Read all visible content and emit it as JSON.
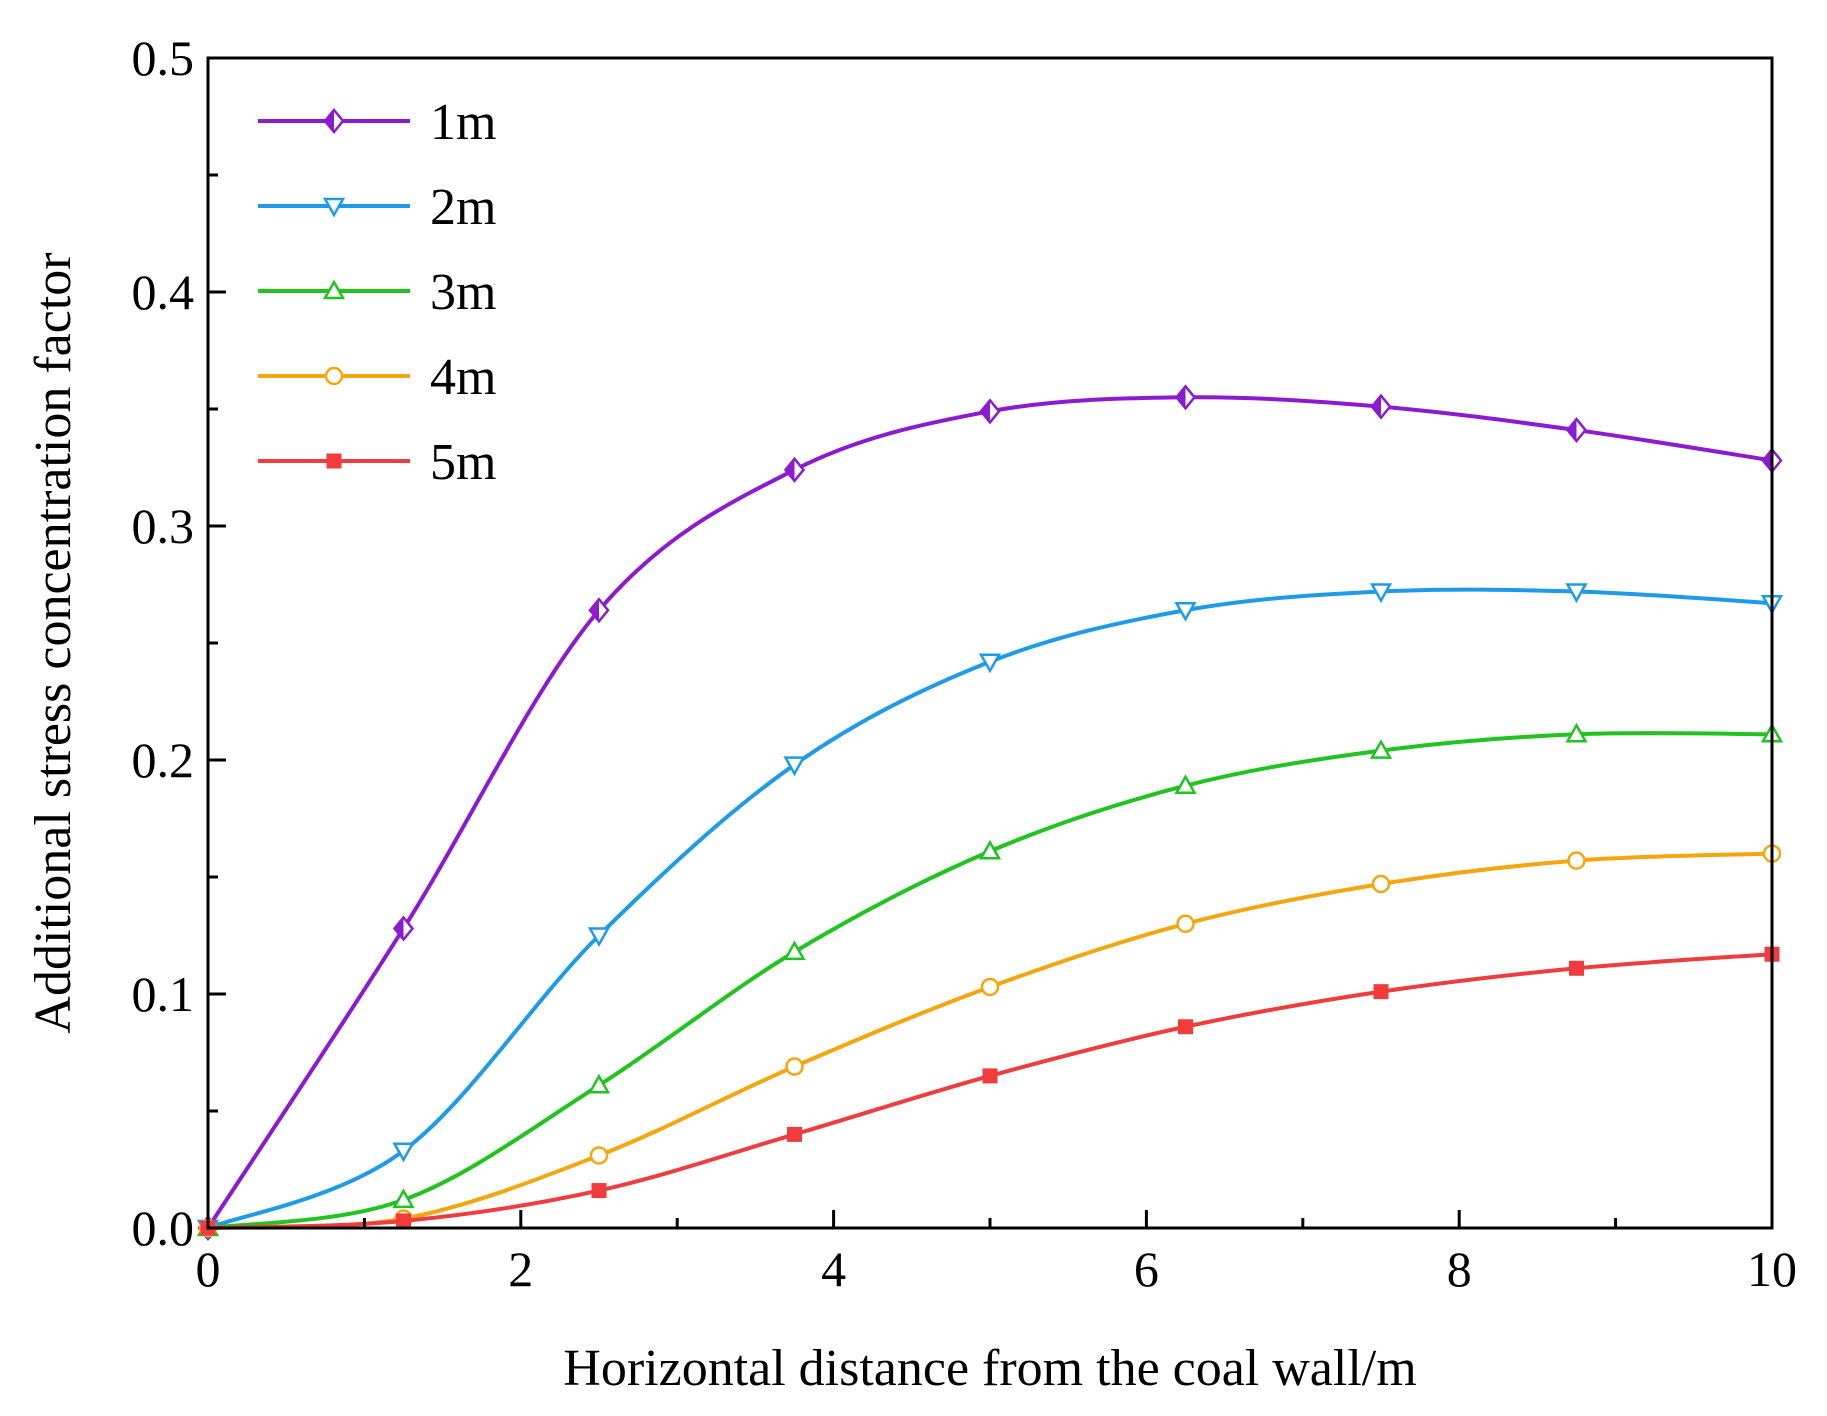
{
  "chart_data": {
    "type": "line",
    "title": "",
    "xlabel": "Horizontal distance from the coal wall/m",
    "ylabel": "Additional stress concentration factor",
    "xlim": [
      0,
      10
    ],
    "ylim": [
      0,
      0.5
    ],
    "x_ticks": [
      "0",
      "2",
      "4",
      "6",
      "8",
      "10"
    ],
    "y_ticks": [
      "0.0",
      "0.1",
      "0.2",
      "0.3",
      "0.4",
      "0.5"
    ],
    "x_tick_values": [
      0,
      2,
      4,
      6,
      8,
      10
    ],
    "y_tick_values": [
      0,
      0.1,
      0.2,
      0.3,
      0.4,
      0.5
    ],
    "x_minor_tick_values": [
      1,
      3,
      5,
      7,
      9
    ],
    "y_minor_tick_values": [
      0.05,
      0.15,
      0.25,
      0.35,
      0.45
    ],
    "grid": false,
    "legend_position": "top-left",
    "x": [
      0,
      1.25,
      2.5,
      3.75,
      5,
      6.25,
      7.5,
      8.75,
      10
    ],
    "series": [
      {
        "name": "1m",
        "color": "#8b1ad0",
        "marker": "diamond-half",
        "values": [
          0,
          0.128,
          0.264,
          0.324,
          0.349,
          0.355,
          0.351,
          0.341,
          0.328
        ]
      },
      {
        "name": "2m",
        "color": "#1e9be8",
        "marker": "triangle-down",
        "values": [
          0,
          0.033,
          0.125,
          0.198,
          0.242,
          0.264,
          0.272,
          0.272,
          0.267
        ]
      },
      {
        "name": "3m",
        "color": "#1fc41f",
        "marker": "triangle-up",
        "values": [
          0,
          0.012,
          0.061,
          0.118,
          0.161,
          0.189,
          0.204,
          0.211,
          0.211
        ]
      },
      {
        "name": "4m",
        "color": "#f5a50e",
        "marker": "circle",
        "values": [
          0,
          0.004,
          0.031,
          0.069,
          0.103,
          0.13,
          0.147,
          0.157,
          0.16
        ]
      },
      {
        "name": "5m",
        "color": "#f03c3c",
        "marker": "square",
        "values": [
          0,
          0.003,
          0.016,
          0.04,
          0.065,
          0.086,
          0.101,
          0.111,
          0.117
        ]
      }
    ]
  }
}
